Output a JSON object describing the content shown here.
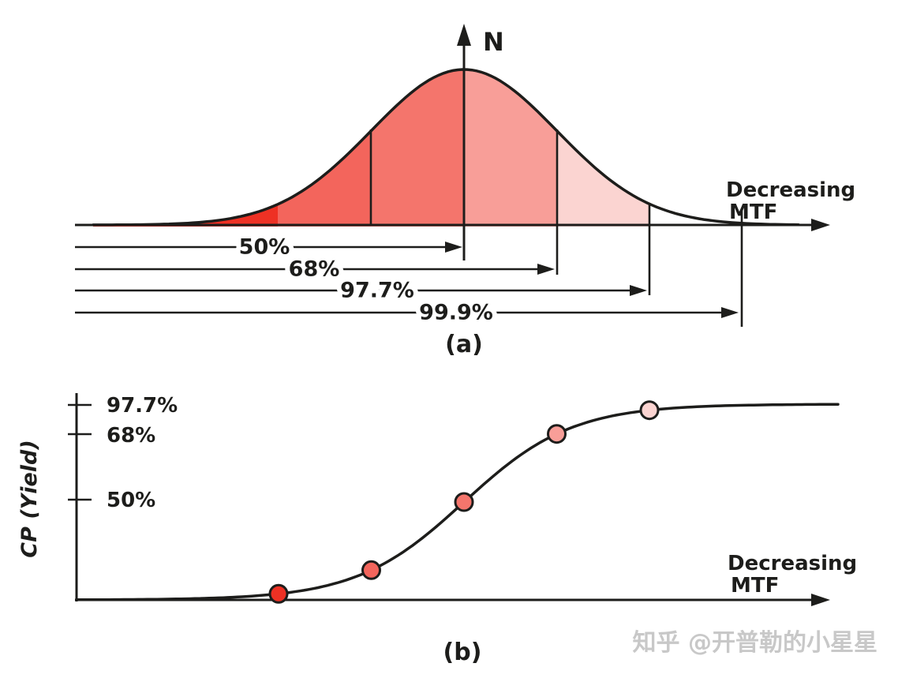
{
  "figure": {
    "watermark": "知乎 @开普勒的小星星",
    "panel_a": {
      "caption": "(a)",
      "y_axis_label": "N",
      "x_axis_label": [
        "Decreasing",
        "MTF"
      ],
      "arrow_labels": [
        "50%",
        "68%",
        "97.7%",
        "99.9%"
      ]
    },
    "panel_b": {
      "caption": "(b)",
      "y_axis_label": "CP (Yield)",
      "x_axis_label": [
        "Decreasing",
        "MTF"
      ],
      "y_tick_labels": [
        "97.7%",
        "68%",
        "50%"
      ]
    }
  },
  "chart_data": [
    {
      "type": "area",
      "panel": "a",
      "title": "(a)",
      "xlabel": "Decreasing MTF",
      "ylabel": "N",
      "description": "Normal (Gaussian) distribution of population N versus decreasing MTF, with shaded bands at successive sigma limits and arrows marking cumulative coverage",
      "cumulative_coverage": [
        {
          "label": "50%",
          "value": 50,
          "upper_bound_sigma": 0
        },
        {
          "label": "68%",
          "value": 68,
          "upper_bound_sigma": 1
        },
        {
          "label": "97.7%",
          "value": 97.7,
          "upper_bound_sigma": 2
        },
        {
          "label": "99.9%",
          "value": 99.9,
          "upper_bound_sigma": 3
        }
      ],
      "bands": [
        {
          "from_sigma": -4,
          "to_sigma": -2,
          "color": "#ee3124"
        },
        {
          "from_sigma": -2,
          "to_sigma": -1,
          "color": "#f3655c"
        },
        {
          "from_sigma": -1,
          "to_sigma": 0,
          "color": "#f4756c"
        },
        {
          "from_sigma": 0,
          "to_sigma": 1,
          "color": "#f89e98"
        },
        {
          "from_sigma": 1,
          "to_sigma": 2,
          "color": "#fbd4d1"
        }
      ]
    },
    {
      "type": "scatter",
      "panel": "b",
      "title": "(b)",
      "xlabel": "Decreasing MTF",
      "ylabel": "CP (Yield)",
      "ytick_labels": [
        "50%",
        "68%",
        "97.7%"
      ],
      "ytick_values": [
        50,
        68,
        97.7
      ],
      "curve": "S-shaped cumulative yield (CP) rising as MTF decreases, flattening near 100%",
      "points": [
        {
          "sigma": -2,
          "yield_percent": 2.3,
          "color": "#ee3124"
        },
        {
          "sigma": -1,
          "yield_percent": 32,
          "color": "#f3655c"
        },
        {
          "sigma": 0,
          "yield_percent": 50,
          "color": "#f4756c"
        },
        {
          "sigma": 1,
          "yield_percent": 68,
          "color": "#f89e98"
        },
        {
          "sigma": 2,
          "yield_percent": 97.7,
          "color": "#fbd4d1"
        }
      ]
    }
  ]
}
